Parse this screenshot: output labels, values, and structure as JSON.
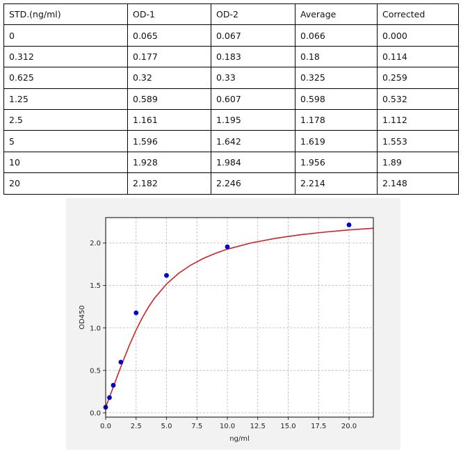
{
  "table": {
    "headers": [
      "STD.(ng/ml)",
      "OD-1",
      "OD-2",
      "Average",
      "Corrected"
    ],
    "rows": [
      [
        "0",
        "0.065",
        "0.067",
        "0.066",
        "0.000"
      ],
      [
        "0.312",
        "0.177",
        "0.183",
        "0.18",
        "0.114"
      ],
      [
        "0.625",
        "0.32",
        "0.33",
        "0.325",
        "0.259"
      ],
      [
        "1.25",
        "0.589",
        "0.607",
        "0.598",
        "0.532"
      ],
      [
        "2.5",
        "1.161",
        "1.195",
        "1.178",
        "1.112"
      ],
      [
        "5",
        "1.596",
        "1.642",
        "1.619",
        "1.553"
      ],
      [
        "10",
        "1.928",
        "1.984",
        "1.956",
        "1.89"
      ],
      [
        "20",
        "2.182",
        "2.246",
        "2.214",
        "2.148"
      ]
    ]
  },
  "chart_data": {
    "type": "scatter",
    "title": "",
    "xlabel": "ng/ml",
    "ylabel": "OD450",
    "xlim": [
      0,
      22
    ],
    "ylim": [
      -0.05,
      2.3
    ],
    "x_ticks": [
      "0.0",
      "2.5",
      "5.0",
      "7.5",
      "10.0",
      "12.5",
      "15.0",
      "17.5",
      "20.0"
    ],
    "y_ticks": [
      "0.0",
      "0.5",
      "1.0",
      "1.5",
      "2.0"
    ],
    "grid": true,
    "series": [
      {
        "kind": "points",
        "color": "#0000cc",
        "x": [
          0,
          0.312,
          0.625,
          1.25,
          2.5,
          5,
          10,
          20
        ],
        "y": [
          0.066,
          0.18,
          0.325,
          0.598,
          1.178,
          1.619,
          1.956,
          2.214
        ]
      },
      {
        "kind": "fitted-curve",
        "color": "#cc2222",
        "x": [
          0,
          0.25,
          0.5,
          1,
          1.5,
          2,
          2.5,
          3,
          3.5,
          4,
          5,
          6,
          7,
          8,
          9,
          10,
          12,
          14,
          16,
          18,
          20,
          22
        ],
        "y": [
          0.066,
          0.16,
          0.256,
          0.449,
          0.637,
          0.814,
          0.975,
          1.118,
          1.242,
          1.348,
          1.518,
          1.644,
          1.741,
          1.817,
          1.878,
          1.928,
          2.003,
          2.057,
          2.098,
          2.129,
          2.155,
          2.175
        ]
      }
    ]
  }
}
